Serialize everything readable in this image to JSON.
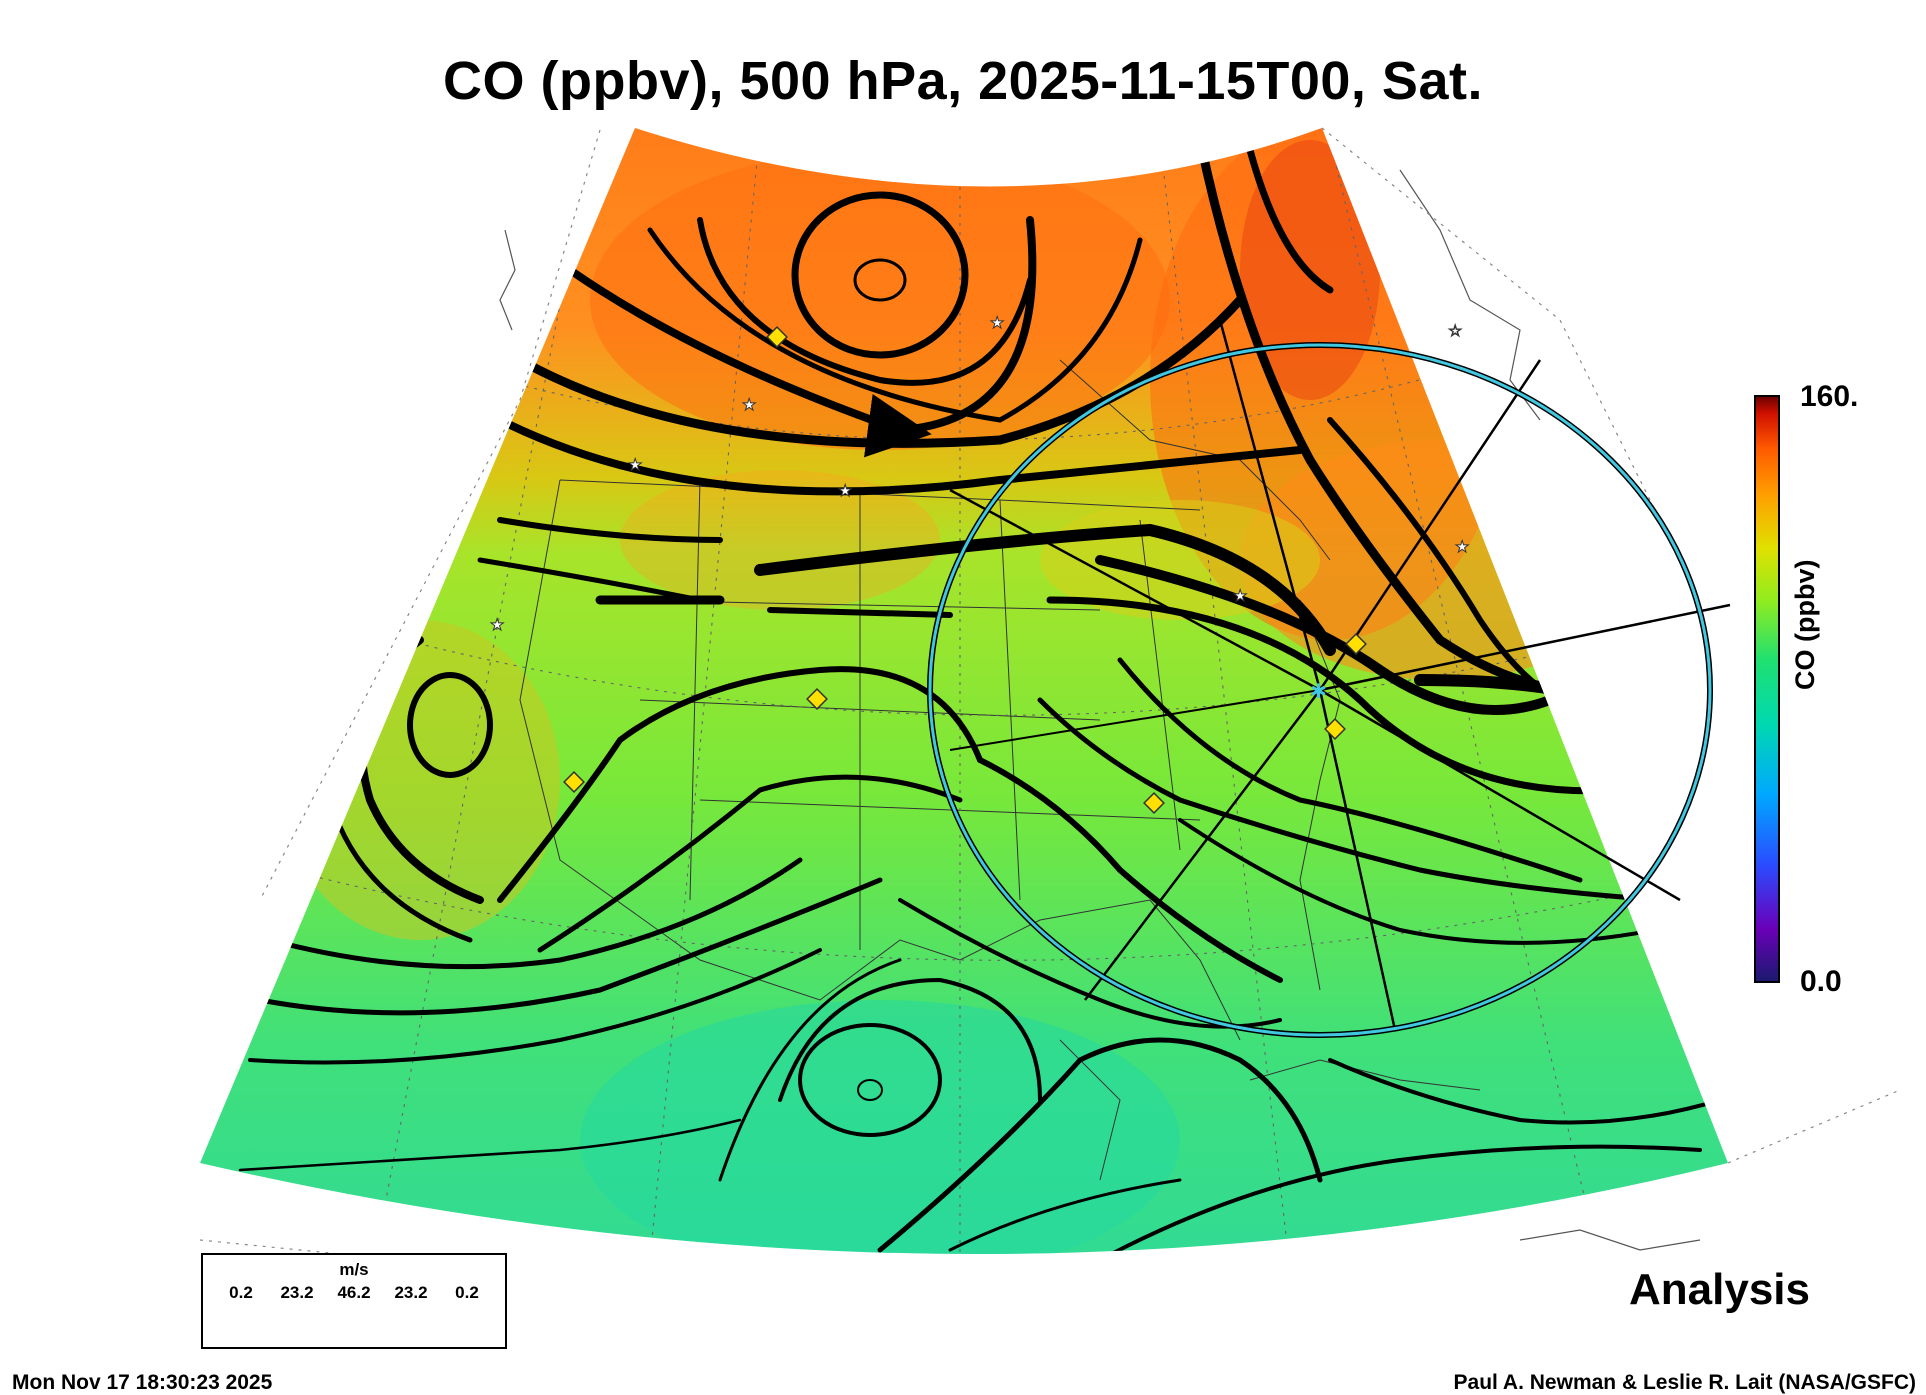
{
  "title": "CO (ppbv), 500 hPa, 2025-11-15T00, Sat.",
  "colorbar": {
    "label": "CO (ppbv)",
    "max_label": "160.",
    "min_label": "0.0",
    "colors": [
      "#1a1a6e",
      "#6a00b8",
      "#2a4cff",
      "#00a8ff",
      "#00d8b0",
      "#20e070",
      "#90ec20",
      "#e0e000",
      "#ffa000",
      "#ff5a00",
      "#d01000",
      "#6a0000"
    ]
  },
  "map_colors": {
    "low_co": "#2fe08a",
    "mid_co": "#88ec28",
    "high_co": "#ff8a18",
    "very_high_co": "#ff5a10",
    "trajectory_circle": "#40c8e0",
    "marker_fill": "#ffe000"
  },
  "wind_legend": {
    "unit": "m/s",
    "ticks": [
      "0.2",
      "23.2",
      "46.2",
      "23.2",
      "0.2"
    ]
  },
  "analysis_label": "Analysis",
  "timestamp": "Mon Nov 17 18:30:23 2025",
  "credit": "Paul A. Newman & Leslie R. Lait (NASA/GSFC)"
}
